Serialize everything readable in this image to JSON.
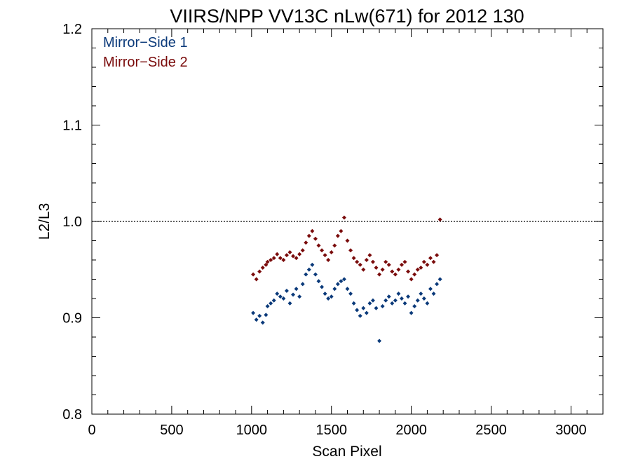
{
  "chart_data": {
    "type": "scatter",
    "title": "VIIRS/NPP VV13C nLw(671) for 2012 130",
    "xlabel": "Scan Pixel",
    "ylabel": "L2/L3",
    "xlim": [
      0,
      3200
    ],
    "ylim": [
      0.8,
      1.2
    ],
    "x_ticks": [
      0,
      500,
      1000,
      1500,
      2000,
      2500,
      3000
    ],
    "y_ticks": [
      0.8,
      0.9,
      1.0,
      1.1,
      1.2
    ],
    "y_tick_labels": [
      "0.8",
      "0.9",
      "1.0",
      "1.1",
      "1.2"
    ],
    "reference_line": {
      "y": 1.0,
      "style": "dotted"
    },
    "legend_position": "top-left",
    "series": [
      {
        "name": "Mirror−Side 1",
        "color": "#0b3a7a",
        "points": [
          [
            1010,
            0.905
          ],
          [
            1030,
            0.898
          ],
          [
            1050,
            0.902
          ],
          [
            1070,
            0.895
          ],
          [
            1090,
            0.903
          ],
          [
            1100,
            0.912
          ],
          [
            1120,
            0.915
          ],
          [
            1140,
            0.918
          ],
          [
            1160,
            0.925
          ],
          [
            1180,
            0.922
          ],
          [
            1200,
            0.92
          ],
          [
            1220,
            0.928
          ],
          [
            1240,
            0.915
          ],
          [
            1260,
            0.924
          ],
          [
            1280,
            0.93
          ],
          [
            1300,
            0.922
          ],
          [
            1320,
            0.935
          ],
          [
            1340,
            0.945
          ],
          [
            1360,
            0.95
          ],
          [
            1380,
            0.955
          ],
          [
            1400,
            0.945
          ],
          [
            1420,
            0.938
          ],
          [
            1440,
            0.932
          ],
          [
            1460,
            0.925
          ],
          [
            1480,
            0.92
          ],
          [
            1500,
            0.922
          ],
          [
            1520,
            0.93
          ],
          [
            1540,
            0.935
          ],
          [
            1560,
            0.938
          ],
          [
            1580,
            0.94
          ],
          [
            1600,
            0.93
          ],
          [
            1620,
            0.925
          ],
          [
            1640,
            0.915
          ],
          [
            1660,
            0.908
          ],
          [
            1680,
            0.902
          ],
          [
            1700,
            0.91
          ],
          [
            1720,
            0.905
          ],
          [
            1740,
            0.915
          ],
          [
            1760,
            0.918
          ],
          [
            1780,
            0.91
          ],
          [
            1800,
            0.876
          ],
          [
            1820,
            0.912
          ],
          [
            1840,
            0.918
          ],
          [
            1860,
            0.922
          ],
          [
            1880,
            0.915
          ],
          [
            1900,
            0.918
          ],
          [
            1920,
            0.925
          ],
          [
            1940,
            0.92
          ],
          [
            1960,
            0.915
          ],
          [
            1980,
            0.922
          ],
          [
            2000,
            0.905
          ],
          [
            2020,
            0.912
          ],
          [
            2040,
            0.918
          ],
          [
            2060,
            0.925
          ],
          [
            2080,
            0.92
          ],
          [
            2100,
            0.915
          ],
          [
            2120,
            0.93
          ],
          [
            2140,
            0.925
          ],
          [
            2160,
            0.935
          ],
          [
            2180,
            0.94
          ]
        ]
      },
      {
        "name": "Mirror−Side 2",
        "color": "#7a0b0b",
        "points": [
          [
            1010,
            0.945
          ],
          [
            1030,
            0.94
          ],
          [
            1050,
            0.948
          ],
          [
            1070,
            0.952
          ],
          [
            1090,
            0.955
          ],
          [
            1100,
            0.958
          ],
          [
            1120,
            0.96
          ],
          [
            1140,
            0.962
          ],
          [
            1160,
            0.966
          ],
          [
            1180,
            0.962
          ],
          [
            1200,
            0.96
          ],
          [
            1220,
            0.965
          ],
          [
            1240,
            0.968
          ],
          [
            1260,
            0.964
          ],
          [
            1280,
            0.962
          ],
          [
            1300,
            0.966
          ],
          [
            1320,
            0.97
          ],
          [
            1340,
            0.978
          ],
          [
            1360,
            0.985
          ],
          [
            1380,
            0.99
          ],
          [
            1400,
            0.982
          ],
          [
            1420,
            0.975
          ],
          [
            1440,
            0.97
          ],
          [
            1460,
            0.965
          ],
          [
            1480,
            0.96
          ],
          [
            1500,
            0.968
          ],
          [
            1520,
            0.975
          ],
          [
            1540,
            0.985
          ],
          [
            1560,
            0.99
          ],
          [
            1580,
            1.004
          ],
          [
            1600,
            0.98
          ],
          [
            1620,
            0.97
          ],
          [
            1640,
            0.962
          ],
          [
            1660,
            0.958
          ],
          [
            1680,
            0.955
          ],
          [
            1700,
            0.95
          ],
          [
            1720,
            0.96
          ],
          [
            1740,
            0.965
          ],
          [
            1760,
            0.958
          ],
          [
            1780,
            0.952
          ],
          [
            1800,
            0.945
          ],
          [
            1820,
            0.95
          ],
          [
            1840,
            0.958
          ],
          [
            1860,
            0.955
          ],
          [
            1880,
            0.948
          ],
          [
            1900,
            0.945
          ],
          [
            1920,
            0.95
          ],
          [
            1940,
            0.955
          ],
          [
            1960,
            0.958
          ],
          [
            1980,
            0.948
          ],
          [
            2000,
            0.94
          ],
          [
            2020,
            0.945
          ],
          [
            2040,
            0.95
          ],
          [
            2060,
            0.952
          ],
          [
            2080,
            0.958
          ],
          [
            2100,
            0.955
          ],
          [
            2120,
            0.962
          ],
          [
            2140,
            0.958
          ],
          [
            2160,
            0.965
          ],
          [
            2180,
            1.002
          ]
        ]
      }
    ]
  }
}
